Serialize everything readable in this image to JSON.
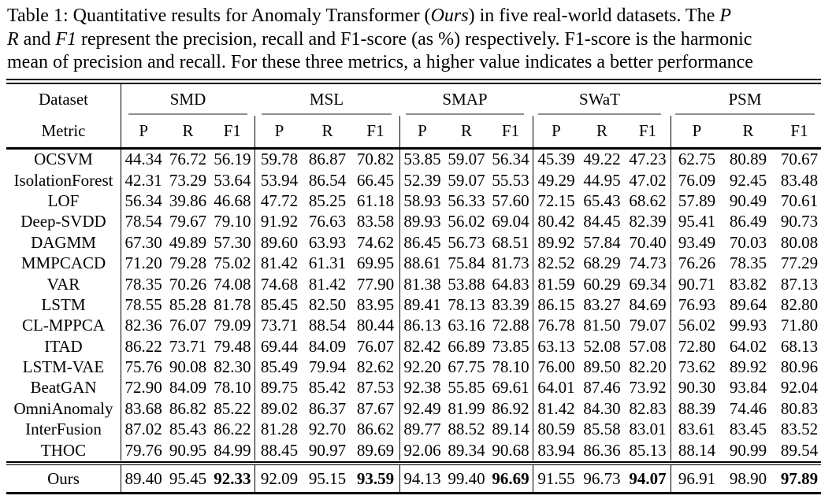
{
  "caption": {
    "lines": [
      {
        "segments": [
          {
            "text": "Table 1: Quantitative results for Anomaly Transformer ("
          },
          {
            "text": "Ours",
            "italic": true
          },
          {
            "text": ") in five real-world datasets.  The "
          },
          {
            "text": "P",
            "italic": true
          }
        ]
      },
      {
        "segments": [
          {
            "text": "R",
            "italic": true
          },
          {
            "text": " and "
          },
          {
            "text": "F1",
            "italic": true
          },
          {
            "text": " represent the precision, recall and F1-score (as %) respectively. F1-score is the harmonic"
          }
        ]
      },
      {
        "segments": [
          {
            "text": "mean of precision and recall. For these three metrics, a higher value indicates a better performance"
          }
        ]
      }
    ]
  },
  "table": {
    "header": {
      "row1_label": "Dataset",
      "row2_label": "Metric",
      "groups": [
        "SMD",
        "MSL",
        "SMAP",
        "SWaT",
        "PSM"
      ],
      "metrics": [
        "P",
        "R",
        "F1"
      ]
    },
    "baseline_rows": [
      {
        "name": "OCSVM",
        "values": [
          [
            "44.34",
            "76.72",
            "56.19"
          ],
          [
            "59.78",
            "86.87",
            "70.82"
          ],
          [
            "53.85",
            "59.07",
            "56.34"
          ],
          [
            "45.39",
            "49.22",
            "47.23"
          ],
          [
            "62.75",
            "80.89",
            "70.67"
          ]
        ]
      },
      {
        "name": "IsolationForest",
        "values": [
          [
            "42.31",
            "73.29",
            "53.64"
          ],
          [
            "53.94",
            "86.54",
            "66.45"
          ],
          [
            "52.39",
            "59.07",
            "55.53"
          ],
          [
            "49.29",
            "44.95",
            "47.02"
          ],
          [
            "76.09",
            "92.45",
            "83.48"
          ]
        ]
      },
      {
        "name": "LOF",
        "values": [
          [
            "56.34",
            "39.86",
            "46.68"
          ],
          [
            "47.72",
            "85.25",
            "61.18"
          ],
          [
            "58.93",
            "56.33",
            "57.60"
          ],
          [
            "72.15",
            "65.43",
            "68.62"
          ],
          [
            "57.89",
            "90.49",
            "70.61"
          ]
        ]
      },
      {
        "name": "Deep-SVDD",
        "values": [
          [
            "78.54",
            "79.67",
            "79.10"
          ],
          [
            "91.92",
            "76.63",
            "83.58"
          ],
          [
            "89.93",
            "56.02",
            "69.04"
          ],
          [
            "80.42",
            "84.45",
            "82.39"
          ],
          [
            "95.41",
            "86.49",
            "90.73"
          ]
        ]
      },
      {
        "name": "DAGMM",
        "values": [
          [
            "67.30",
            "49.89",
            "57.30"
          ],
          [
            "89.60",
            "63.93",
            "74.62"
          ],
          [
            "86.45",
            "56.73",
            "68.51"
          ],
          [
            "89.92",
            "57.84",
            "70.40"
          ],
          [
            "93.49",
            "70.03",
            "80.08"
          ]
        ]
      },
      {
        "name": "MMPCACD",
        "values": [
          [
            "71.20",
            "79.28",
            "75.02"
          ],
          [
            "81.42",
            "61.31",
            "69.95"
          ],
          [
            "88.61",
            "75.84",
            "81.73"
          ],
          [
            "82.52",
            "68.29",
            "74.73"
          ],
          [
            "76.26",
            "78.35",
            "77.29"
          ]
        ]
      },
      {
        "name": "VAR",
        "values": [
          [
            "78.35",
            "70.26",
            "74.08"
          ],
          [
            "74.68",
            "81.42",
            "77.90"
          ],
          [
            "81.38",
            "53.88",
            "64.83"
          ],
          [
            "81.59",
            "60.29",
            "69.34"
          ],
          [
            "90.71",
            "83.82",
            "87.13"
          ]
        ]
      },
      {
        "name": "LSTM",
        "values": [
          [
            "78.55",
            "85.28",
            "81.78"
          ],
          [
            "85.45",
            "82.50",
            "83.95"
          ],
          [
            "89.41",
            "78.13",
            "83.39"
          ],
          [
            "86.15",
            "83.27",
            "84.69"
          ],
          [
            "76.93",
            "89.64",
            "82.80"
          ]
        ]
      },
      {
        "name": "CL-MPPCA",
        "values": [
          [
            "82.36",
            "76.07",
            "79.09"
          ],
          [
            "73.71",
            "88.54",
            "80.44"
          ],
          [
            "86.13",
            "63.16",
            "72.88"
          ],
          [
            "76.78",
            "81.50",
            "79.07"
          ],
          [
            "56.02",
            "99.93",
            "71.80"
          ]
        ]
      },
      {
        "name": "ITAD",
        "values": [
          [
            "86.22",
            "73.71",
            "79.48"
          ],
          [
            "69.44",
            "84.09",
            "76.07"
          ],
          [
            "82.42",
            "66.89",
            "73.85"
          ],
          [
            "63.13",
            "52.08",
            "57.08"
          ],
          [
            "72.80",
            "64.02",
            "68.13"
          ]
        ]
      },
      {
        "name": "LSTM-VAE",
        "values": [
          [
            "75.76",
            "90.08",
            "82.30"
          ],
          [
            "85.49",
            "79.94",
            "82.62"
          ],
          [
            "92.20",
            "67.75",
            "78.10"
          ],
          [
            "76.00",
            "89.50",
            "82.20"
          ],
          [
            "73.62",
            "89.92",
            "80.96"
          ]
        ]
      },
      {
        "name": "BeatGAN",
        "values": [
          [
            "72.90",
            "84.09",
            "78.10"
          ],
          [
            "89.75",
            "85.42",
            "87.53"
          ],
          [
            "92.38",
            "55.85",
            "69.61"
          ],
          [
            "64.01",
            "87.46",
            "73.92"
          ],
          [
            "90.30",
            "93.84",
            "92.04"
          ]
        ]
      },
      {
        "name": "OmniAnomaly",
        "values": [
          [
            "83.68",
            "86.82",
            "85.22"
          ],
          [
            "89.02",
            "86.37",
            "87.67"
          ],
          [
            "92.49",
            "81.99",
            "86.92"
          ],
          [
            "81.42",
            "84.30",
            "82.83"
          ],
          [
            "88.39",
            "74.46",
            "80.83"
          ]
        ]
      },
      {
        "name": "InterFusion",
        "values": [
          [
            "87.02",
            "85.43",
            "86.22"
          ],
          [
            "81.28",
            "92.70",
            "86.62"
          ],
          [
            "89.77",
            "88.52",
            "89.14"
          ],
          [
            "80.59",
            "85.58",
            "83.01"
          ],
          [
            "83.61",
            "83.45",
            "83.52"
          ]
        ]
      },
      {
        "name": "THOC",
        "values": [
          [
            "79.76",
            "90.95",
            "84.99"
          ],
          [
            "88.45",
            "90.97",
            "89.69"
          ],
          [
            "92.06",
            "89.34",
            "90.68"
          ],
          [
            "83.94",
            "86.36",
            "85.13"
          ],
          [
            "88.14",
            "90.99",
            "89.54"
          ]
        ]
      }
    ],
    "ours_row": {
      "name": "Ours",
      "bold_metric": "F1",
      "values": [
        [
          "89.40",
          "95.45",
          "92.33"
        ],
        [
          "92.09",
          "95.15",
          "93.59"
        ],
        [
          "94.13",
          "99.40",
          "96.69"
        ],
        [
          "91.55",
          "96.73",
          "94.07"
        ],
        [
          "96.91",
          "98.90",
          "97.89"
        ]
      ]
    }
  },
  "colors": {
    "rule": "#000000",
    "cmidrule": "#8f8f8f",
    "text": "#000000",
    "background": "#ffffff"
  }
}
